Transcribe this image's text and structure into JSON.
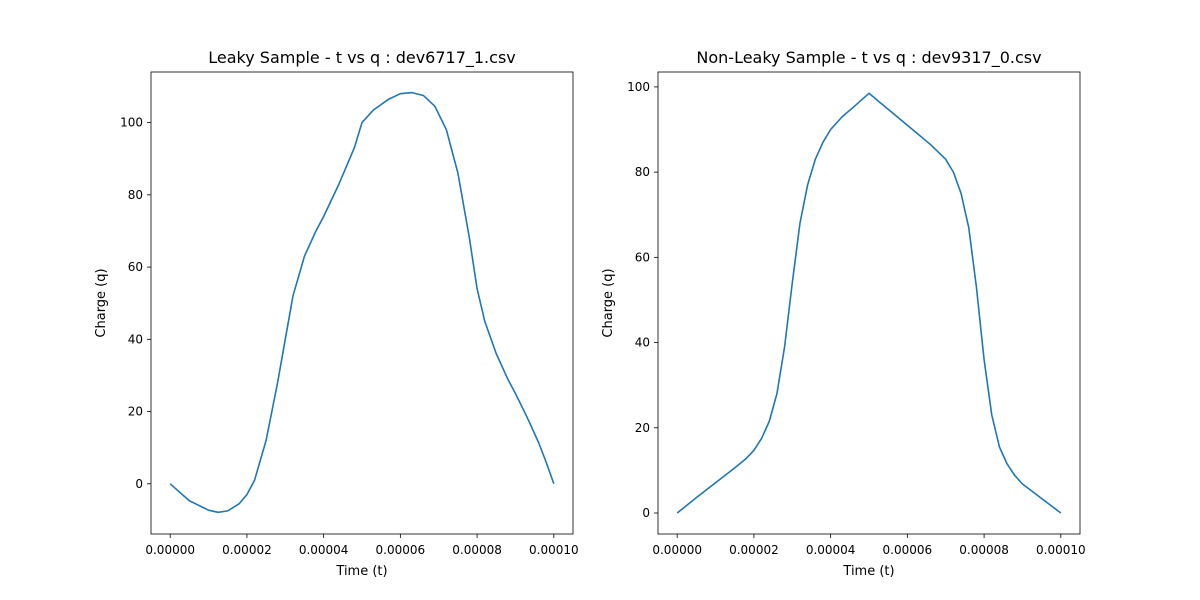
{
  "chart_data": [
    {
      "type": "line",
      "title": "Leaky Sample - t vs q : dev6717_1.csv",
      "xlabel": "Time (t)",
      "ylabel": "Charge (q)",
      "xlim": [
        -5e-06,
        0.000105
      ],
      "ylim": [
        -13.9,
        114.0
      ],
      "grid": false,
      "xticks": [
        0,
        2e-05,
        4e-05,
        6e-05,
        8e-05,
        0.0001
      ],
      "xtick_labels": [
        "0.00000",
        "0.00002",
        "0.00004",
        "0.00006",
        "0.00008",
        "0.00010"
      ],
      "yticks": [
        0,
        20,
        40,
        60,
        80,
        100
      ],
      "ytick_labels": [
        "0",
        "20",
        "40",
        "60",
        "80",
        "100"
      ],
      "series": [
        {
          "color": "#1f77b4",
          "x": [
            0,
            5e-06,
            1e-05,
            1.25e-05,
            1.5e-05,
            1.8e-05,
            2e-05,
            2.2e-05,
            2.5e-05,
            2.8e-05,
            3e-05,
            3.2e-05,
            3.5e-05,
            3.8e-05,
            4e-05,
            4.4e-05,
            4.8e-05,
            5e-05,
            5.3e-05,
            5.7e-05,
            6e-05,
            6.3e-05,
            6.6e-05,
            6.9e-05,
            7.2e-05,
            7.5e-05,
            7.8e-05,
            8e-05,
            8.2e-05,
            8.5e-05,
            8.8e-05,
            9e-05,
            9.3e-05,
            9.6e-05,
            9.8e-05,
            0.0001
          ],
          "y": [
            0,
            -4.7,
            -7.3,
            -7.9,
            -7.5,
            -5.5,
            -3.0,
            1.0,
            12.0,
            28.0,
            40.0,
            52.0,
            63.0,
            70.0,
            74.0,
            83.0,
            93.0,
            100.0,
            103.5,
            106.5,
            108.0,
            108.3,
            107.5,
            104.5,
            98.0,
            86.0,
            68.0,
            54.0,
            45.0,
            36.0,
            29.0,
            25.0,
            18.5,
            11.5,
            6.0,
            0
          ]
        }
      ]
    },
    {
      "type": "line",
      "title": "Non-Leaky Sample - t vs q : dev9317_0.csv",
      "xlabel": "Time (t)",
      "ylabel": "Charge (q)",
      "xlim": [
        -5e-06,
        0.000105
      ],
      "ylim": [
        -4.93,
        103.5
      ],
      "grid": false,
      "xticks": [
        0,
        2e-05,
        4e-05,
        6e-05,
        8e-05,
        0.0001
      ],
      "xtick_labels": [
        "0.00000",
        "0.00002",
        "0.00004",
        "0.00006",
        "0.00008",
        "0.00010"
      ],
      "yticks": [
        0,
        20,
        40,
        60,
        80,
        100
      ],
      "ytick_labels": [
        "0",
        "20",
        "40",
        "60",
        "80",
        "100"
      ],
      "series": [
        {
          "color": "#1f77b4",
          "x": [
            0,
            5e-06,
            1e-05,
            1.5e-05,
            1.8e-05,
            2e-05,
            2.2e-05,
            2.4e-05,
            2.6e-05,
            2.8e-05,
            3e-05,
            3.2e-05,
            3.4e-05,
            3.6e-05,
            3.8e-05,
            4e-05,
            4.3e-05,
            4.6e-05,
            5e-05,
            5.4e-05,
            5.8e-05,
            6.2e-05,
            6.6e-05,
            7e-05,
            7.2e-05,
            7.4e-05,
            7.6e-05,
            7.8e-05,
            8e-05,
            8.2e-05,
            8.4e-05,
            8.6e-05,
            8.8e-05,
            9e-05,
            9.5e-05,
            0.0001
          ],
          "y": [
            0,
            3.6,
            7.1,
            10.6,
            12.8,
            14.7,
            17.5,
            21.5,
            28.0,
            39.0,
            54.0,
            68.0,
            77.0,
            83.0,
            87.0,
            90.0,
            93.0,
            95.3,
            98.5,
            95.5,
            92.5,
            89.5,
            86.5,
            83.0,
            80.0,
            75.0,
            67.0,
            53.0,
            36.0,
            23.0,
            15.5,
            11.5,
            8.8,
            6.8,
            3.4,
            0
          ]
        }
      ]
    }
  ]
}
